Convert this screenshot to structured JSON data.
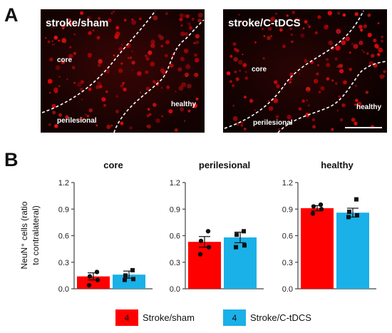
{
  "panel_a": {
    "letter": "A",
    "images": [
      {
        "title": "stroke/sham",
        "labels": {
          "core": "core",
          "perilesional": "perilesional",
          "healthy": "healthy"
        }
      },
      {
        "title": "stroke/C-tDCS",
        "labels": {
          "core": "core",
          "perilesional": "perilesional",
          "healthy": "healthy"
        }
      }
    ]
  },
  "panel_b": {
    "letter": "B",
    "ylabel_line1": "NeuN⁺ cells (ratio",
    "ylabel_line2": "to contralateral)",
    "legend": [
      {
        "n": "4",
        "label": "Stroke/sham",
        "color": "#ff0000"
      },
      {
        "n": "4",
        "label": "Stroke/C-tDCS",
        "color": "#1ab0e8"
      }
    ]
  },
  "chart_data": [
    {
      "type": "bar",
      "title": "core",
      "categories": [
        "Stroke/sham",
        "Stroke/C-tDCS"
      ],
      "values": [
        0.14,
        0.16
      ],
      "errors": [
        0.04,
        0.04
      ],
      "points": [
        [
          0.19,
          0.14,
          0.1,
          0.04
        ],
        [
          0.21,
          0.15,
          0.11,
          0.1
        ]
      ],
      "ylim": [
        0,
        1.2
      ],
      "yticks": [
        "0.0",
        "0.3",
        "0.6",
        "0.9",
        "1.2"
      ],
      "colors": [
        "#ff0000",
        "#1ab0e8"
      ]
    },
    {
      "type": "bar",
      "title": "perilesional",
      "categories": [
        "Stroke/sham",
        "Stroke/C-tDCS"
      ],
      "values": [
        0.53,
        0.58
      ],
      "errors": [
        0.06,
        0.06
      ],
      "points": [
        [
          0.65,
          0.54,
          0.47,
          0.39
        ],
        [
          0.65,
          0.61,
          0.49,
          0.47
        ]
      ],
      "ylim": [
        0,
        1.2
      ],
      "yticks": [
        "0.0",
        "0.3",
        "0.6",
        "0.9",
        "1.2"
      ],
      "colors": [
        "#ff0000",
        "#1ab0e8"
      ]
    },
    {
      "type": "bar",
      "title": "healthy",
      "categories": [
        "Stroke/sham",
        "Stroke/C-tDCS"
      ],
      "values": [
        0.91,
        0.86
      ],
      "errors": [
        0.03,
        0.05
      ],
      "points": [
        [
          0.95,
          0.93,
          0.9,
          0.85
        ],
        [
          1.01,
          0.87,
          0.83,
          0.81
        ]
      ],
      "ylim": [
        0,
        1.2
      ],
      "yticks": [
        "0.0",
        "0.3",
        "0.6",
        "0.9",
        "1.2"
      ],
      "colors": [
        "#ff0000",
        "#1ab0e8"
      ]
    }
  ]
}
